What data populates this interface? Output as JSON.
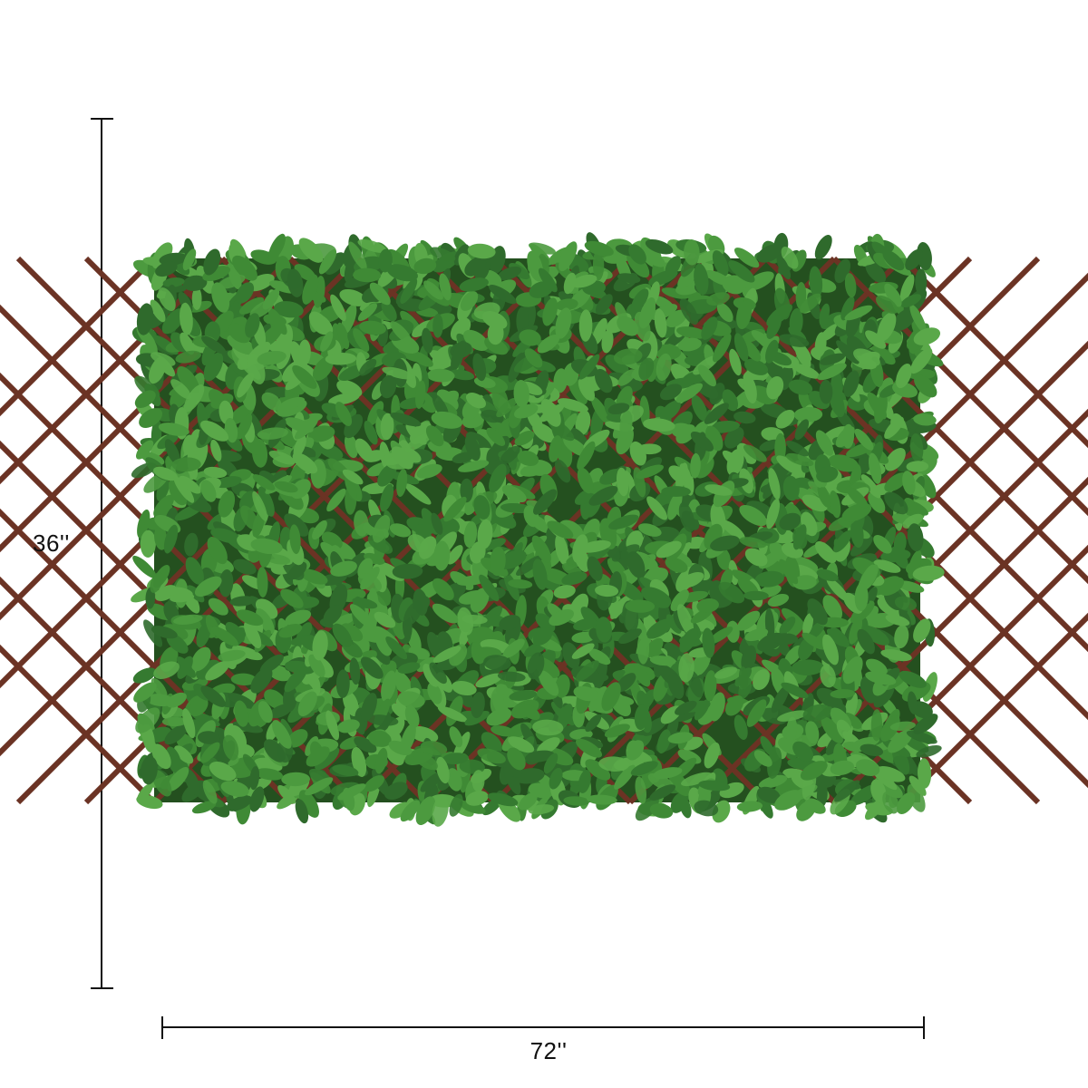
{
  "dimensions": {
    "height_label": "36''",
    "width_label": "72''"
  },
  "product": {
    "name_icon": "leaf-hedge-panel",
    "colors": {
      "leaf_dark": "#2f6a2c",
      "leaf_mid": "#3f8a35",
      "leaf_light": "#5aa849",
      "lattice": "#6b3324",
      "line": "#111111"
    }
  }
}
